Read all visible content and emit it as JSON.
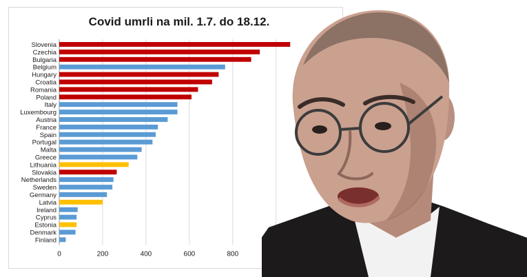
{
  "chart_data": {
    "type": "bar",
    "orientation": "horizontal",
    "title": "Covid umrli na mil. 1.7. do 18.12.",
    "xlabel": "",
    "ylabel": "",
    "xlim": [
      0,
      1150
    ],
    "xticks": [
      "0",
      "200",
      "400",
      "600",
      "800",
      "1000"
    ],
    "xtick_values": [
      0,
      200,
      400,
      600,
      800,
      1000
    ],
    "grid": true,
    "legend": "none",
    "categories": [
      "Slovenia",
      "Czechia",
      "Bulgaria",
      "Belgium",
      "Hungary",
      "Croatia",
      "Romania",
      "Poland",
      "Italy",
      "Luxembourg",
      "Austria",
      "France",
      "Spain",
      "Portugal",
      "Malta",
      "Greece",
      "Lithuania",
      "Slovakia",
      "Netherlands",
      "Sweden",
      "Germany",
      "Latvia",
      "Ireland",
      "Cyprus",
      "Estonia",
      "Denmark",
      "Finland"
    ],
    "values": [
      1065,
      925,
      885,
      765,
      735,
      705,
      640,
      610,
      545,
      545,
      500,
      455,
      445,
      430,
      380,
      360,
      320,
      265,
      250,
      245,
      220,
      200,
      85,
      80,
      80,
      75,
      30
    ],
    "bar_groups": [
      "red",
      "red",
      "red",
      "blue",
      "red",
      "red",
      "red",
      "red",
      "blue",
      "blue",
      "blue",
      "blue",
      "blue",
      "blue",
      "blue",
      "blue",
      "yellow",
      "red",
      "blue",
      "blue",
      "blue",
      "yellow",
      "blue",
      "blue",
      "yellow",
      "blue",
      "blue"
    ],
    "colors": {
      "red": "#c00000",
      "blue": "#5b9bd5",
      "yellow": "#ffc000",
      "grid": "#d9d9d9",
      "text": "#1a1a1a"
    }
  },
  "photo": {
    "icon": "man-portrait-photo",
    "colors": {
      "background": "#ffffff",
      "skin": "#caa08f",
      "skin_shadow": "#8f665a",
      "jacket": "#1c1a1a",
      "shirt": "#f2f2f2",
      "glasses": "#3b3b3b"
    }
  }
}
